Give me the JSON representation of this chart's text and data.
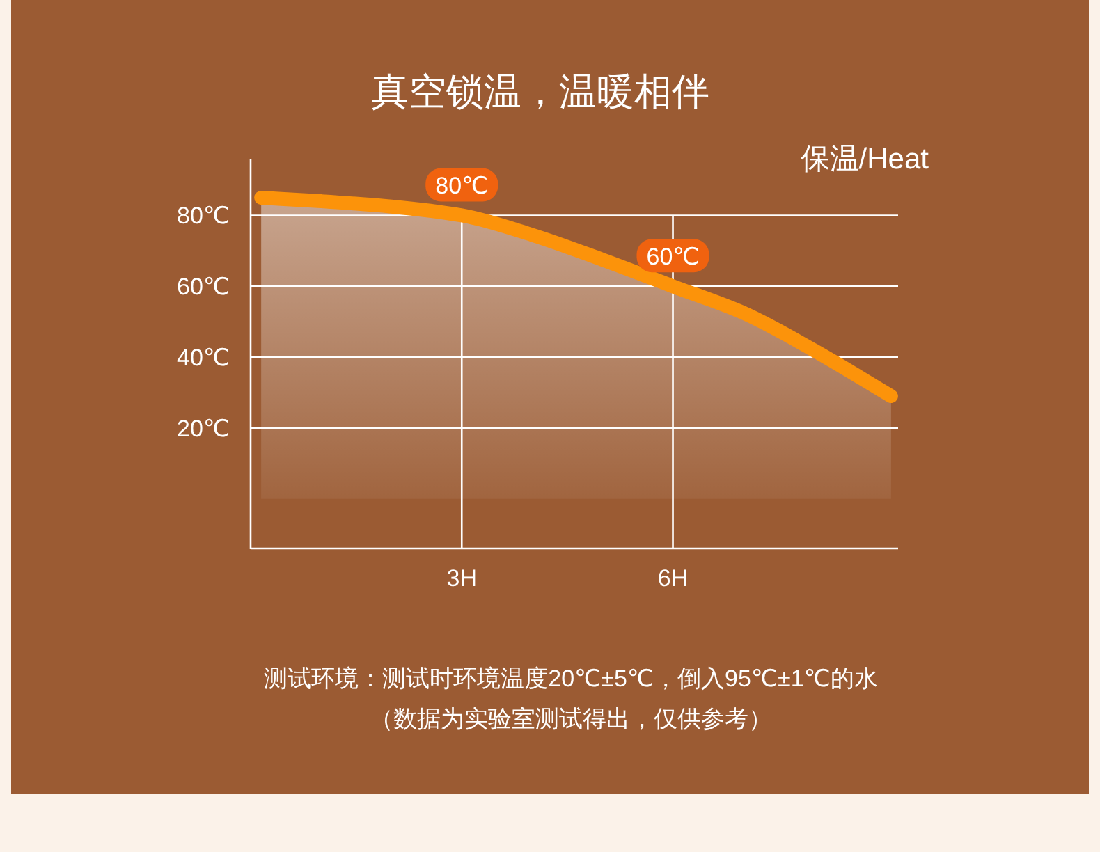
{
  "chart_data": {
    "type": "area",
    "title": "真空锁温，温暖相伴",
    "ylabel": "保温/Heat",
    "x": [
      0.15,
      1,
      2,
      3,
      4,
      5,
      6,
      7,
      8,
      9.1
    ],
    "series": [
      {
        "color": "#fc930a",
        "values": [
          85,
          84,
          82.5,
          80,
          74.5,
          67.5,
          60,
          52.5,
          42,
          29
        ],
        "value_labels": [
          null,
          null,
          null,
          "80℃",
          null,
          null,
          "60℃",
          null,
          null,
          null
        ]
      }
    ],
    "xlim": [
      0,
      9.2
    ],
    "ylim": [
      -14,
      96
    ],
    "xticks": [
      {
        "value": 3,
        "label": "3H"
      },
      {
        "value": 6,
        "label": "6H"
      }
    ],
    "yticks": [
      {
        "value": 20,
        "label": "20℃"
      },
      {
        "value": 40,
        "label": "40℃"
      },
      {
        "value": 60,
        "label": "60℃"
      },
      {
        "value": 80,
        "label": "80℃"
      }
    ],
    "grid": true,
    "annotations": [
      "测试环境：测试时环境温度20℃±5℃，倒入95℃±1℃的水",
      "（数据为实验室测试得出，仅供参考）"
    ]
  }
}
